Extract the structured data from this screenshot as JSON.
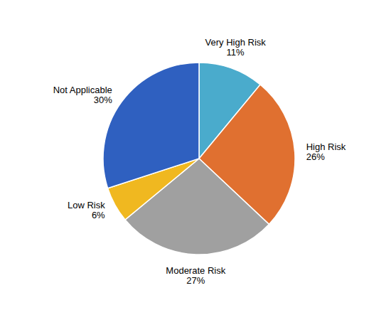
{
  "chart_data": {
    "type": "pie",
    "categories": [
      "Very High Risk",
      "High Risk",
      "Moderate Risk",
      "Low Risk",
      "Not Applicable"
    ],
    "values": [
      11,
      26,
      27,
      6,
      30
    ],
    "value_labels": [
      "11%",
      "26%",
      "27%",
      "6%",
      "30%"
    ],
    "colors": [
      "#4aabcc",
      "#e07030",
      "#a0a0a0",
      "#f0b820",
      "#2f60c0"
    ]
  }
}
